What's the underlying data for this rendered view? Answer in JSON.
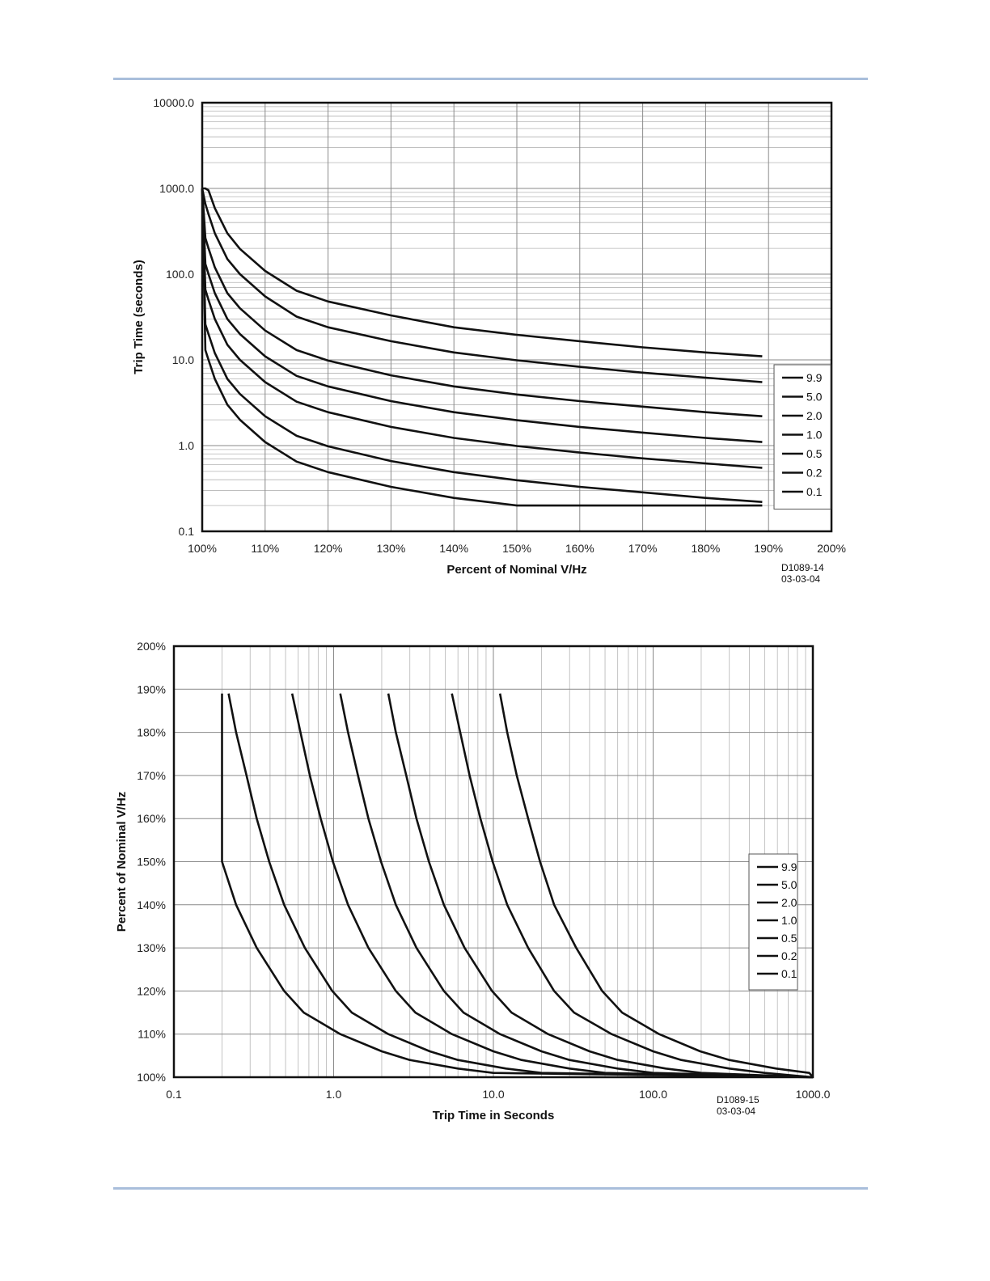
{
  "chart_data": [
    {
      "type": "line",
      "xlabel": "Percent of Nominal V/Hz",
      "ylabel": "Trip Time (seconds)",
      "x_scale": "linear",
      "y_scale": "log",
      "xlim": [
        100,
        200
      ],
      "ylim": [
        0.1,
        10000
      ],
      "x_tick_labels": [
        "100%",
        "110%",
        "120%",
        "130%",
        "140%",
        "150%",
        "160%",
        "170%",
        "180%",
        "190%",
        "200%"
      ],
      "y_tick_labels": [
        "0.1",
        "1.0",
        "10.0",
        "100.0",
        "1000.0",
        "10000.0"
      ],
      "grid": true,
      "legend_position": "right",
      "note": [
        "D1089-14",
        "03-03-04"
      ],
      "series": [
        {
          "name": "9.9",
          "x": [
            100,
            100.5,
            101,
            102,
            104,
            106,
            110,
            115,
            120,
            130,
            140,
            150,
            160,
            170,
            180,
            189
          ],
          "y": [
            1000,
            1000,
            950,
            590,
            300,
            197,
            109,
            64,
            48,
            33,
            24,
            19.6,
            16.5,
            14,
            12.2,
            11
          ]
        },
        {
          "name": "5.0",
          "x": [
            100,
            100.5,
            101,
            102,
            104,
            106,
            110,
            115,
            120,
            130,
            140,
            150,
            160,
            170,
            180,
            189
          ],
          "y": [
            1000,
            660,
            500,
            300,
            150,
            100,
            55,
            32,
            24,
            16.5,
            12.2,
            9.9,
            8.3,
            7.1,
            6.2,
            5.5
          ]
        },
        {
          "name": "2.0",
          "x": [
            100,
            100.5,
            101,
            102,
            104,
            106,
            110,
            115,
            120,
            130,
            140,
            150,
            160,
            170,
            180,
            189
          ],
          "y": [
            1000,
            264,
            200,
            120,
            60,
            40,
            22,
            13,
            9.8,
            6.6,
            4.9,
            3.95,
            3.3,
            2.85,
            2.45,
            2.2
          ]
        },
        {
          "name": "1.0",
          "x": [
            100,
            100.5,
            101,
            102,
            104,
            106,
            110,
            115,
            120,
            130,
            140,
            150,
            160,
            170,
            180,
            189
          ],
          "y": [
            1000,
            132,
            100,
            60,
            30,
            20,
            11,
            6.5,
            4.9,
            3.3,
            2.45,
            1.98,
            1.65,
            1.42,
            1.23,
            1.1
          ]
        },
        {
          "name": "0.5",
          "x": [
            100,
            100.5,
            101,
            102,
            104,
            106,
            110,
            115,
            120,
            130,
            140,
            150,
            160,
            170,
            180,
            189
          ],
          "y": [
            1000,
            66,
            50,
            30,
            15,
            10,
            5.5,
            3.25,
            2.45,
            1.65,
            1.23,
            0.99,
            0.83,
            0.71,
            0.62,
            0.55
          ]
        },
        {
          "name": "0.2",
          "x": [
            100,
            100.5,
            101,
            102,
            104,
            106,
            110,
            115,
            120,
            130,
            140,
            150,
            160,
            170,
            180,
            189
          ],
          "y": [
            1000,
            26,
            20,
            12,
            6,
            4,
            2.2,
            1.3,
            0.98,
            0.66,
            0.49,
            0.395,
            0.33,
            0.285,
            0.245,
            0.22
          ]
        },
        {
          "name": "0.1",
          "x": [
            100,
            100.5,
            101,
            102,
            104,
            106,
            110,
            115,
            120,
            130,
            140,
            150,
            160,
            170,
            180,
            189
          ],
          "y": [
            1000,
            13,
            10,
            6,
            3,
            2,
            1.1,
            0.65,
            0.49,
            0.33,
            0.245,
            0.2,
            0.2,
            0.2,
            0.2,
            0.2
          ]
        }
      ]
    },
    {
      "type": "line",
      "xlabel": "Trip Time in Seconds",
      "ylabel": "Percent of Nominal V/Hz",
      "x_scale": "log",
      "y_scale": "linear",
      "xlim": [
        0.1,
        1000
      ],
      "ylim": [
        100,
        200
      ],
      "x_tick_labels": [
        "0.1",
        "1.0",
        "10.0",
        "100.0",
        "1000.0"
      ],
      "y_tick_labels": [
        "100%",
        "110%",
        "120%",
        "130%",
        "140%",
        "150%",
        "160%",
        "170%",
        "180%",
        "190%",
        "200%"
      ],
      "grid": true,
      "legend_position": "right",
      "note": [
        "D1089-15",
        "03-03-04"
      ],
      "series": [
        {
          "name": "9.9",
          "x": [
            11,
            12.2,
            14,
            16.5,
            19.6,
            24,
            33,
            48,
            64,
            109,
            197,
            300,
            590,
            950,
            1000
          ],
          "y": [
            189,
            180,
            170,
            160,
            150,
            140,
            130,
            120,
            115,
            110,
            106,
            104,
            102,
            101,
            100
          ]
        },
        {
          "name": "5.0",
          "x": [
            5.5,
            6.2,
            7.1,
            8.3,
            9.9,
            12.2,
            16.5,
            24,
            32,
            55,
            100,
            150,
            300,
            500,
            1000
          ],
          "y": [
            189,
            180,
            170,
            160,
            150,
            140,
            130,
            120,
            115,
            110,
            106,
            104,
            102,
            101,
            100
          ]
        },
        {
          "name": "2.0",
          "x": [
            2.2,
            2.45,
            2.85,
            3.3,
            3.95,
            4.9,
            6.6,
            9.8,
            13,
            22,
            40,
            60,
            120,
            200,
            1000
          ],
          "y": [
            189,
            180,
            170,
            160,
            150,
            140,
            130,
            120,
            115,
            110,
            106,
            104,
            102,
            101,
            100
          ]
        },
        {
          "name": "1.0",
          "x": [
            1.1,
            1.23,
            1.42,
            1.65,
            1.98,
            2.45,
            3.3,
            4.9,
            6.5,
            11,
            20,
            30,
            60,
            100,
            1000
          ],
          "y": [
            189,
            180,
            170,
            160,
            150,
            140,
            130,
            120,
            115,
            110,
            106,
            104,
            102,
            101,
            100
          ]
        },
        {
          "name": "0.5",
          "x": [
            0.55,
            0.62,
            0.71,
            0.83,
            0.99,
            1.23,
            1.65,
            2.45,
            3.25,
            5.5,
            10,
            15,
            30,
            50,
            1000
          ],
          "y": [
            189,
            180,
            170,
            160,
            150,
            140,
            130,
            120,
            115,
            110,
            106,
            104,
            102,
            101,
            100
          ]
        },
        {
          "name": "0.2",
          "x": [
            0.22,
            0.245,
            0.285,
            0.33,
            0.395,
            0.49,
            0.66,
            0.98,
            1.3,
            2.2,
            4,
            6,
            12,
            20,
            1000
          ],
          "y": [
            189,
            180,
            170,
            160,
            150,
            140,
            130,
            120,
            115,
            110,
            106,
            104,
            102,
            101,
            100
          ]
        },
        {
          "name": "0.1",
          "x": [
            0.2,
            0.2,
            0.2,
            0.2,
            0.2,
            0.245,
            0.33,
            0.49,
            0.65,
            1.1,
            2,
            3,
            6,
            10,
            1000
          ],
          "y": [
            189,
            180,
            170,
            160,
            150,
            140,
            130,
            120,
            115,
            110,
            106,
            104,
            102,
            101,
            100
          ]
        }
      ]
    }
  ]
}
